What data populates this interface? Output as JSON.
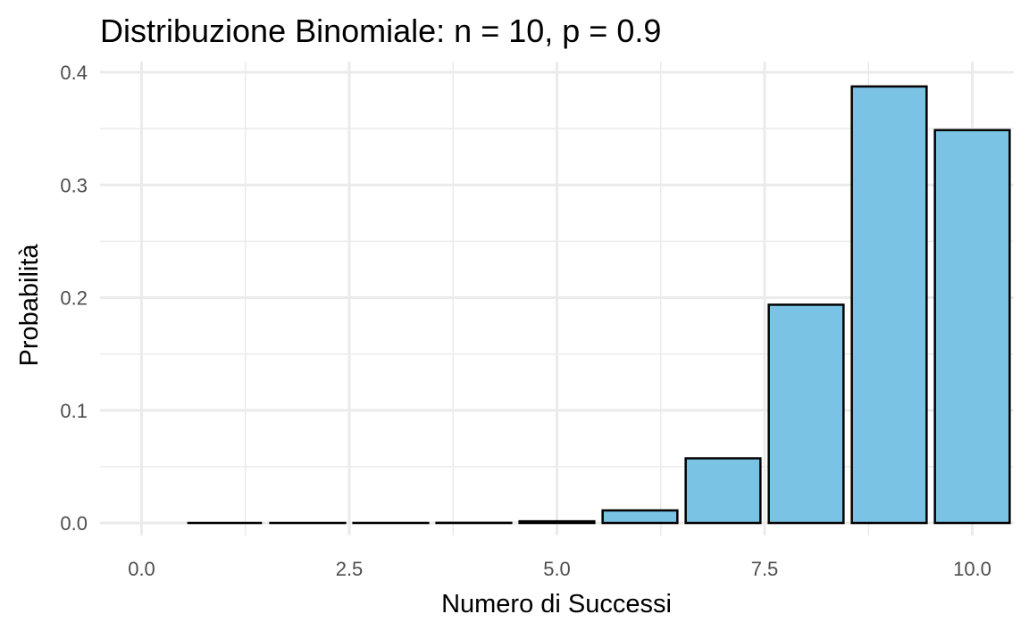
{
  "chart_data": {
    "type": "bar",
    "title": "Distribuzione Binomiale: n = 10, p = 0.9",
    "xlabel": "Numero di Successi",
    "ylabel": "Probabilità",
    "x": [
      0,
      1,
      2,
      3,
      4,
      5,
      6,
      7,
      8,
      9,
      10
    ],
    "values": [
      1e-10,
      9e-09,
      3.645e-07,
      8.748e-06,
      0.000137781,
      0.0014880348,
      0.011160261,
      0.057395628,
      0.1937102445,
      0.387420489,
      0.3486784401
    ],
    "xlim": [
      -0.5,
      10.5
    ],
    "ylim": [
      0,
      0.4
    ],
    "x_ticks": [
      0,
      2.5,
      5,
      7.5,
      10
    ],
    "x_tick_labels": [
      "0.0",
      "2.5",
      "5.0",
      "7.5",
      "10.0"
    ],
    "y_ticks": [
      0,
      0.1,
      0.2,
      0.3,
      0.4
    ],
    "y_tick_labels": [
      "0.0",
      "0.1",
      "0.2",
      "0.3",
      "0.4"
    ],
    "grid": true,
    "bar_fill": "#7AC3E4",
    "bar_outline": "#000000",
    "grid_color": "#EBEBEB",
    "background": "#FFFFFF"
  }
}
